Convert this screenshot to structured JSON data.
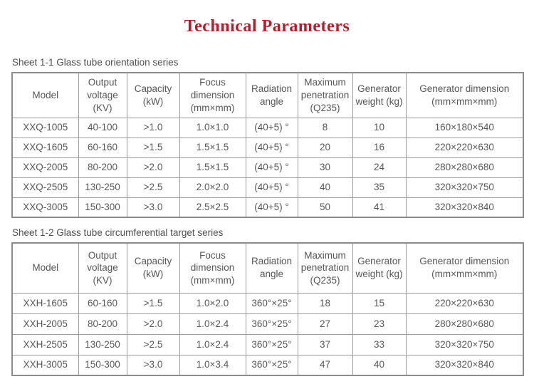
{
  "page": {
    "title": "Technical Parameters",
    "accent_red": "#b01f2c",
    "text_gray": "#575757",
    "border_gray": "#9b9b9b"
  },
  "sheet1": {
    "label": "Sheet 1-1 Glass tube orientation series",
    "columns": [
      "Model",
      "Output voltage (KV)",
      "Capacity (kW)",
      "Focus dimension (mm×mm)",
      "Radiation angle",
      "Maximum penetration (Q235)",
      "Generator weight (kg)",
      "Generator dimension (mm×mm×mm)"
    ],
    "rows": [
      [
        "XXQ-1005",
        "40-100",
        ">1.0",
        "1.0×1.0",
        "(40+5) °",
        "8",
        "10",
        "160×180×540"
      ],
      [
        "XXQ-1605",
        "60-160",
        ">1.5",
        "1.5×1.5",
        "(40+5) °",
        "20",
        "16",
        "220×220×630"
      ],
      [
        "XXQ-2005",
        "80-200",
        ">2.0",
        "1.5×1.5",
        "(40+5) °",
        "30",
        "24",
        "280×280×680"
      ],
      [
        "XXQ-2505",
        "130-250",
        ">2.5",
        "2.0×2.0",
        "(40+5) °",
        "40",
        "35",
        "320×320×750"
      ],
      [
        "XXQ-3005",
        "150-300",
        ">3.0",
        "2.5×2.5",
        "(40+5) °",
        "50",
        "41",
        "320×320×840"
      ]
    ]
  },
  "sheet2": {
    "label": "Sheet 1-2 Glass tube circumferential target series",
    "columns": [
      "Model",
      "Output voltage (KV)",
      "Capacity (kW)",
      "Focus dimension (mm×mm)",
      "Radiation angle",
      "Maximum penetration (Q235)",
      "Generator weight (kg)",
      "Generator dimension (mm×mm×mm)"
    ],
    "rows": [
      [
        "XXH-1605",
        "60-160",
        ">1.5",
        "1.0×2.0",
        "360°×25°",
        "18",
        "15",
        "220×220×630"
      ],
      [
        "XXH-2005",
        "80-200",
        ">2.0",
        "1.0×2.4",
        "360°×25°",
        "27",
        "23",
        "280×280×680"
      ],
      [
        "XXH-2505",
        "130-250",
        ">2.5",
        "1.0×2.4",
        "360°×25°",
        "37",
        "33",
        "320×320×750"
      ],
      [
        "XXH-3005",
        "150-300",
        ">3.0",
        "1.0×3.4",
        "360°×25°",
        "47",
        "40",
        "320×320×840"
      ]
    ]
  }
}
